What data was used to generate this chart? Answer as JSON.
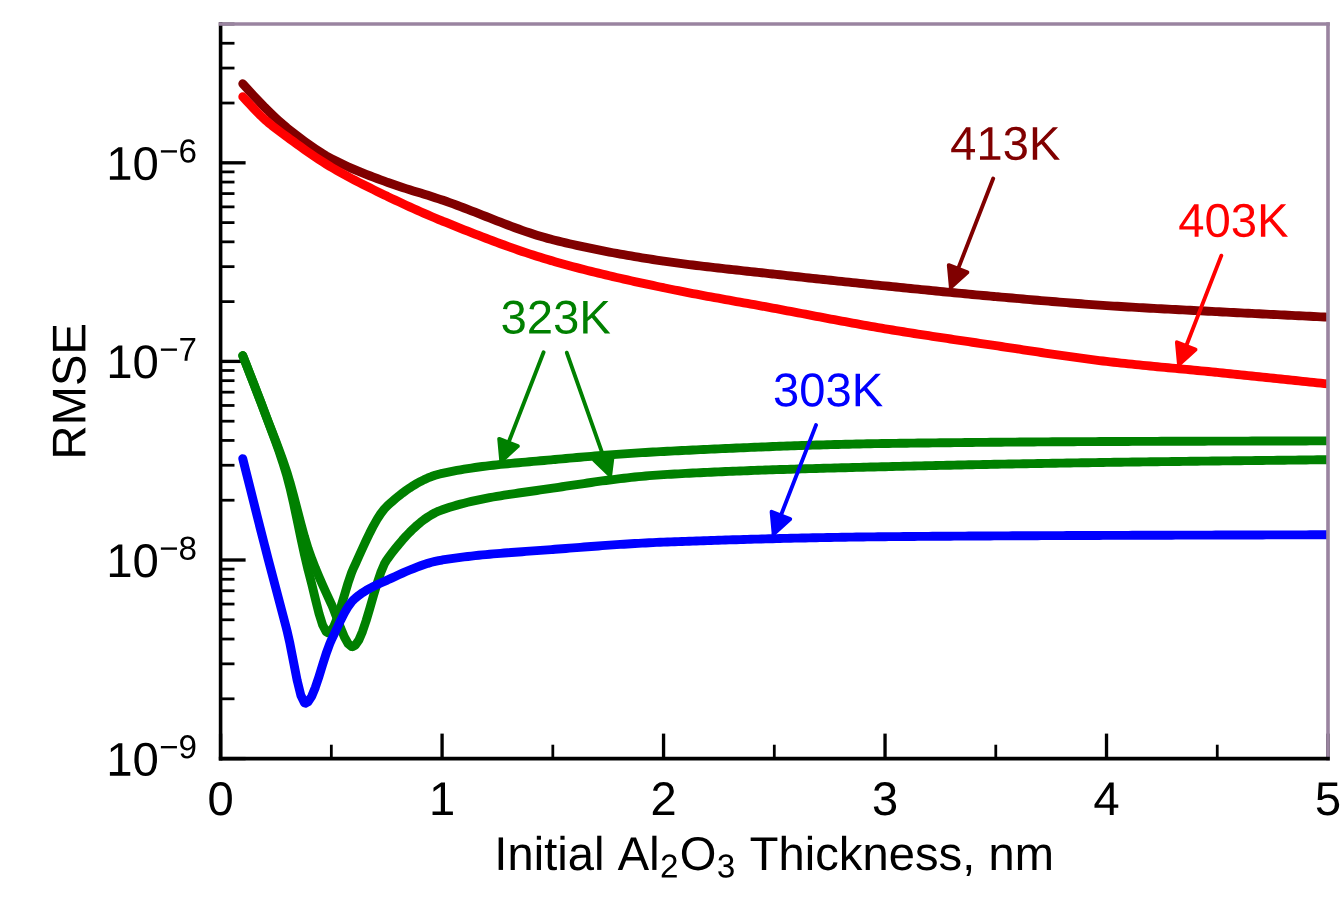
{
  "chart_data": {
    "type": "line",
    "xlabel": "Initial Al$_{2}$O$_{3}$ Thickness, nm",
    "ylabel": "RMSE",
    "log": "y",
    "xlim": [
      0,
      5
    ],
    "xticks": [
      0,
      1,
      2,
      3,
      4,
      5
    ],
    "ylim": [
      1e-09,
      5e-06
    ],
    "yticks": [
      {
        "value": 1e-09,
        "label": "10$^{−9}$"
      },
      {
        "value": 1e-08,
        "label": "10$^{−8}$"
      },
      {
        "value": 1e-07,
        "label": "10$^{−7}$"
      },
      {
        "value": 1e-06,
        "label": "10$^{−6}$"
      }
    ],
    "grid": false,
    "marker": "none",
    "line_style": "solid",
    "series": [
      {
        "color": "#800000",
        "x": [
          0.1,
          0.2,
          0.3,
          0.5,
          0.75,
          1,
          1.5,
          2,
          2.5,
          3,
          3.5,
          4,
          4.5,
          5
        ],
        "values": [
          2.5e-06,
          1.9e-06,
          1.5e-06,
          1.05e-06,
          8e-07,
          6.5e-07,
          4.1e-07,
          3.2e-07,
          2.75e-07,
          2.4e-07,
          2.12e-07,
          1.91e-07,
          1.78e-07,
          1.67e-07
        ]
      },
      {
        "color": "#ff0000",
        "x": [
          0.1,
          0.2,
          0.3,
          0.5,
          0.75,
          1,
          1.5,
          2,
          2.5,
          3,
          3.5,
          4,
          4.5,
          5
        ],
        "values": [
          2.15e-06,
          1.65e-06,
          1.35e-06,
          9.5e-07,
          6.8e-07,
          5.1e-07,
          3.2e-07,
          2.35e-07,
          1.85e-07,
          1.46e-07,
          1.2e-07,
          1e-07,
          8.8e-08,
          7.7e-08
        ]
      },
      {
        "color": "#008000",
        "x": [
          0.1,
          0.2,
          0.3,
          0.4,
          0.485,
          0.6,
          0.75,
          1,
          1.5,
          2,
          3,
          4,
          5
        ],
        "values": [
          1.07e-07,
          5.5e-08,
          2.63e-08,
          8.5e-09,
          4.3e-09,
          9.1e-09,
          1.86e-08,
          2.73e-08,
          3.2e-08,
          3.52e-08,
          3.86e-08,
          3.95e-08,
          3.98e-08
        ]
      },
      {
        "color": "#008000",
        "x": [
          0.1,
          0.2,
          0.3,
          0.4,
          0.5,
          0.595,
          0.75,
          1,
          1.5,
          2,
          3,
          4,
          5
        ],
        "values": [
          1.07e-07,
          5.5e-08,
          2.75e-08,
          1.1e-08,
          6e-09,
          3.66e-09,
          1e-08,
          1.79e-08,
          2.3e-08,
          2.69e-08,
          2.95e-08,
          3.1e-08,
          3.2e-08
        ]
      },
      {
        "color": "#0000ff",
        "x": [
          0.1,
          0.2,
          0.3,
          0.383,
          0.5,
          0.6,
          0.75,
          1,
          1.5,
          2,
          3,
          4,
          5
        ],
        "values": [
          3.24e-08,
          1.17e-08,
          4.4e-09,
          1.9e-09,
          3.95e-09,
          6.3e-09,
          7.9e-09,
          1e-08,
          1.13e-08,
          1.23e-08,
          1.31e-08,
          1.33e-08,
          1.34e-08
        ]
      }
    ],
    "annotations": [
      {
        "text": "413K",
        "x": 3.29,
        "y": 2.25e-07
      },
      {
        "text": "403K",
        "x": 4.32,
        "y": 9.2e-08
      },
      {
        "text": "323K",
        "x": 1.26,
        "y": 3e-08
      },
      {
        "text": "303K",
        "x": 2.49,
        "y": 1.29e-08
      }
    ]
  }
}
